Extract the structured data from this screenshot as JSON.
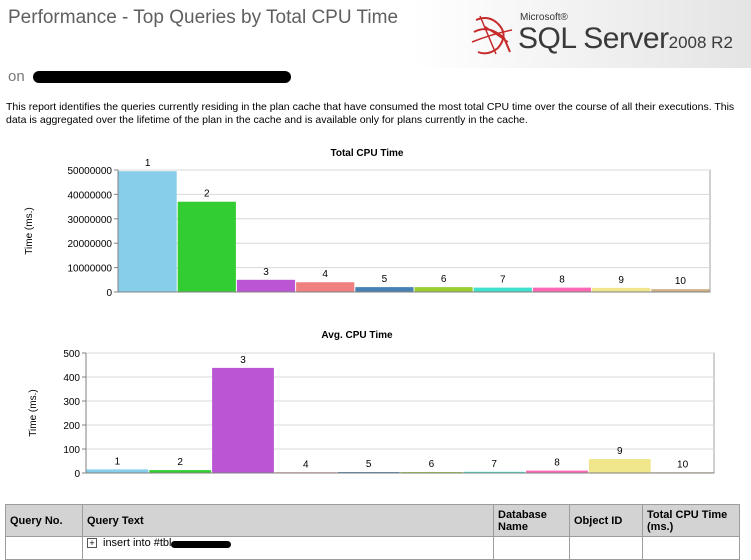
{
  "header": {
    "title": "Performance - Top Queries by Total CPU Time",
    "run_date_prefix": "on",
    "logo": {
      "microsoft": "Microsoft®",
      "product": "SQL Server",
      "version": "2008 R2"
    }
  },
  "description": "This report identifies the queries currently residing in the plan cache that have consumed the most total CPU time over the course of all their executions.  This data is aggregated over the lifetime of the plan in the cache and is available only for plans currently in the cache.",
  "chart_data": [
    {
      "type": "bar",
      "title": "Total CPU Time",
      "ylabel": "Time (ms.)",
      "xlabel": "",
      "ylim": [
        0,
        50000000
      ],
      "yticks": [
        0,
        10000000,
        20000000,
        30000000,
        40000000,
        50000000
      ],
      "ytick_labels": [
        "0",
        "10000000",
        "20000000",
        "30000000",
        "40000000",
        "50000000"
      ],
      "categories": [
        "1",
        "2",
        "3",
        "4",
        "5",
        "6",
        "7",
        "8",
        "9",
        "10"
      ],
      "values": [
        49500000,
        37000000,
        5000000,
        4000000,
        2000000,
        2000000,
        1800000,
        1800000,
        1700000,
        1200000
      ],
      "colors": [
        "#87ceeb",
        "#32cd32",
        "#ba55d3",
        "#f08080",
        "#4682b4",
        "#9acd32",
        "#40e0d0",
        "#ff69b4",
        "#f0e68c",
        "#d2b48c"
      ],
      "grid": true,
      "legend": "none"
    },
    {
      "type": "bar",
      "title": "Avg. CPU Time",
      "ylabel": "Time (ms.)",
      "xlabel": "",
      "ylim": [
        0,
        500
      ],
      "yticks": [
        0,
        100,
        200,
        300,
        400,
        500
      ],
      "ytick_labels": [
        "0",
        "100",
        "200",
        "300",
        "400",
        "500"
      ],
      "categories": [
        "1",
        "2",
        "3",
        "4",
        "5",
        "6",
        "7",
        "8",
        "9",
        "10"
      ],
      "values": [
        15,
        12,
        438,
        3,
        4,
        4,
        5,
        10,
        58,
        3
      ],
      "colors": [
        "#87ceeb",
        "#32cd32",
        "#ba55d3",
        "#f08080",
        "#4682b4",
        "#9acd32",
        "#40e0d0",
        "#ff69b4",
        "#f0e68c",
        "#d2b48c"
      ],
      "grid": true,
      "legend": "none"
    }
  ],
  "table": {
    "headers": {
      "query_no": "Query No.",
      "query_text": "Query Text",
      "database_name": "Database Name",
      "object_id": "Object ID",
      "total_cpu": "Total CPU Time (ms.)"
    },
    "rows": [
      {
        "expander": "+",
        "query_text": "insert into #tbl"
      }
    ]
  }
}
